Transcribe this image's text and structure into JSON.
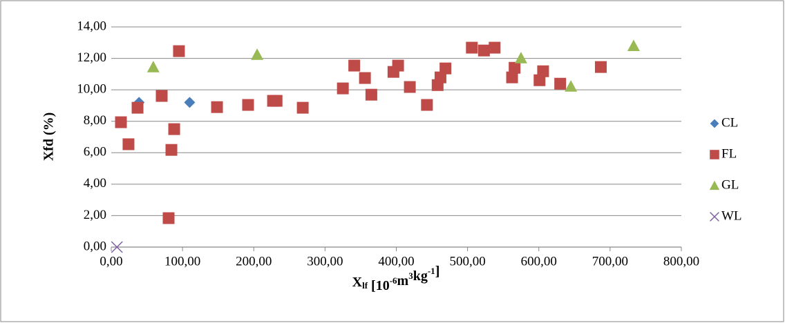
{
  "chart_data": {
    "type": "scatter",
    "y_label": "Xfd (%)",
    "x_label": [
      "X",
      "lf",
      " [10",
      "-6",
      "m",
      "3",
      "kg",
      "-1",
      "]"
    ],
    "x_label_styles": [
      "normal",
      "sub",
      "normal",
      "sup",
      "normal",
      "sup",
      "normal",
      "sup",
      "normal"
    ],
    "xlim": [
      0,
      800
    ],
    "xticks": [
      {
        "value": 0,
        "label": "0,00"
      },
      {
        "value": 100,
        "label": "100,00"
      },
      {
        "value": 200,
        "label": "200,00"
      },
      {
        "value": 300,
        "label": "300,00"
      },
      {
        "value": 400,
        "label": "400,00"
      },
      {
        "value": 500,
        "label": "500,00"
      },
      {
        "value": 600,
        "label": "600,00"
      },
      {
        "value": 700,
        "label": "700,00"
      },
      {
        "value": 800,
        "label": "800,00"
      }
    ],
    "ylim": [
      0,
      14
    ],
    "yticks": [
      {
        "value": 0,
        "label": "0,00"
      },
      {
        "value": 2,
        "label": "2,00"
      },
      {
        "value": 4,
        "label": "4,00"
      },
      {
        "value": 6,
        "label": "6,00"
      },
      {
        "value": 8,
        "label": "8,00"
      },
      {
        "value": 10,
        "label": "10,00"
      },
      {
        "value": 12,
        "label": "12,00"
      },
      {
        "value": 14,
        "label": "14,00"
      }
    ],
    "grid": true,
    "legend": "right",
    "series": [
      {
        "name": "CL",
        "color": "#4a7ebb",
        "marker": "diamond",
        "x": [
          39,
          110
        ],
        "values": [
          9.2,
          9.2
        ]
      },
      {
        "name": "FL",
        "color": "#be4b48",
        "marker": "square",
        "x": [
          13.6,
          24.2,
          36.9,
          70.8,
          80.5,
          84.4,
          88.3,
          95,
          148.4,
          192,
          227,
          232,
          268.7,
          325,
          341,
          356,
          365,
          396,
          402.5,
          419,
          443,
          458,
          462,
          469,
          506,
          523,
          538,
          562.5,
          566,
          601,
          606,
          630,
          687
        ],
        "values": [
          7.94,
          6.54,
          8.86,
          9.61,
          1.84,
          6.18,
          7.5,
          12.46,
          8.9,
          9.04,
          9.3,
          9.3,
          8.86,
          10.09,
          11.54,
          10.75,
          9.69,
          11.14,
          11.54,
          10.18,
          9.04,
          10.3,
          10.79,
          11.36,
          12.68,
          12.5,
          12.68,
          10.79,
          11.4,
          10.61,
          11.18,
          10.39,
          11.45
        ]
      },
      {
        "name": "GL",
        "color": "#98b954",
        "marker": "triangle",
        "x": [
          59,
          204.7,
          575,
          645,
          733
        ],
        "values": [
          11.45,
          12.24,
          12.02,
          10.22,
          12.8
        ]
      },
      {
        "name": "WL",
        "color": "#7d60a0",
        "marker": "x",
        "x": [
          8
        ],
        "values": [
          0
        ]
      }
    ]
  }
}
